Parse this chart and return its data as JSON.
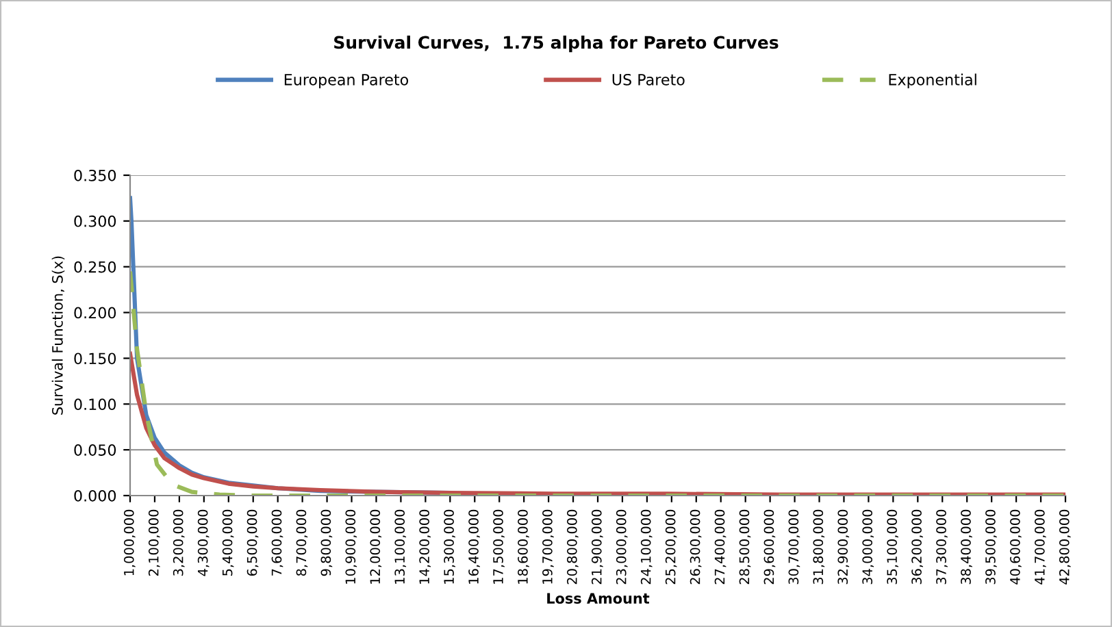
{
  "chart_data": {
    "type": "line",
    "title": "Survival Curves,  1.75 alpha for Pareto Curves",
    "xlabel": "Loss Amount",
    "ylabel": "Survival Function, S(x)",
    "xlim": [
      1000000,
      42800000
    ],
    "xticks": [
      {
        "value": 1000000,
        "label": "1,000,000"
      },
      {
        "value": 2100000,
        "label": "2,100,000"
      },
      {
        "value": 3200000,
        "label": "3,200,000"
      },
      {
        "value": 4300000,
        "label": "4,300,000"
      },
      {
        "value": 5400000,
        "label": "5,400,000"
      },
      {
        "value": 6500000,
        "label": "6,500,000"
      },
      {
        "value": 7600000,
        "label": "7,600,000"
      },
      {
        "value": 8700000,
        "label": "8,700,000"
      },
      {
        "value": 9800000,
        "label": "9,800,000"
      },
      {
        "value": 10900000,
        "label": "10,900,000"
      },
      {
        "value": 12000000,
        "label": "12,000,000"
      },
      {
        "value": 13100000,
        "label": "13,100,000"
      },
      {
        "value": 14200000,
        "label": "14,200,000"
      },
      {
        "value": 15300000,
        "label": "15,300,000"
      },
      {
        "value": 16400000,
        "label": "16,400,000"
      },
      {
        "value": 17500000,
        "label": "17,500,000"
      },
      {
        "value": 18600000,
        "label": "18,600,000"
      },
      {
        "value": 19700000,
        "label": "19,700,000"
      },
      {
        "value": 20800000,
        "label": "20,800,000"
      },
      {
        "value": 21900000,
        "label": "21,900,000"
      },
      {
        "value": 23000000,
        "label": "23,000,000"
      },
      {
        "value": 24100000,
        "label": "24,100,000"
      },
      {
        "value": 25200000,
        "label": "25,200,000"
      },
      {
        "value": 26300000,
        "label": "26,300,000"
      },
      {
        "value": 27400000,
        "label": "27,400,000"
      },
      {
        "value": 28500000,
        "label": "28,500,000"
      },
      {
        "value": 29600000,
        "label": "29,600,000"
      },
      {
        "value": 30700000,
        "label": "30,700,000"
      },
      {
        "value": 31800000,
        "label": "31,800,000"
      },
      {
        "value": 32900000,
        "label": "32,900,000"
      },
      {
        "value": 34000000,
        "label": "34,000,000"
      },
      {
        "value": 35100000,
        "label": "35,100,000"
      },
      {
        "value": 36200000,
        "label": "36,200,000"
      },
      {
        "value": 37300000,
        "label": "37,300,000"
      },
      {
        "value": 38400000,
        "label": "38,400,000"
      },
      {
        "value": 39500000,
        "label": "39,500,000"
      },
      {
        "value": 40600000,
        "label": "40,600,000"
      },
      {
        "value": 41700000,
        "label": "41,700,000"
      },
      {
        "value": 42800000,
        "label": "42,800,000"
      }
    ],
    "ylim": [
      0,
      0.35
    ],
    "yticks": [
      {
        "value": 0,
        "label": "0.000"
      },
      {
        "value": 0.05,
        "label": "0.050"
      },
      {
        "value": 0.1,
        "label": "0.100"
      },
      {
        "value": 0.15,
        "label": "0.150"
      },
      {
        "value": 0.2,
        "label": "0.200"
      },
      {
        "value": 0.25,
        "label": "0.250"
      },
      {
        "value": 0.3,
        "label": "0.300"
      },
      {
        "value": 0.35,
        "label": "0.350"
      }
    ],
    "grid": "y",
    "legend": "top",
    "marker": "none",
    "series": [
      {
        "name": "European Pareto",
        "color": "#4f81bd",
        "line_style": "solid",
        "x": [
          1000000,
          1060000,
          1310000,
          1720000,
          2100000,
          2530000,
          3200000,
          3760000,
          4300000,
          5400000,
          6500000,
          7600000,
          9500000,
          12000000,
          15300000
        ],
        "values": [
          0.325,
          0.3,
          0.15,
          0.088,
          0.063,
          0.047,
          0.033,
          0.025,
          0.02,
          0.014,
          0.011,
          0.008,
          0.005,
          0.004,
          0.003
        ]
      },
      {
        "name": "US Pareto",
        "color": "#c0504d",
        "line_style": "solid",
        "x": [
          1000000,
          1310000,
          1720000,
          2100000,
          2530000,
          3200000,
          3760000,
          4300000,
          5400000,
          6500000,
          7600000,
          9500000,
          12000000,
          15300000,
          20000000,
          25000000,
          30000000,
          36000000,
          42800000
        ],
        "values": [
          0.155,
          0.11,
          0.074,
          0.055,
          0.041,
          0.03,
          0.023,
          0.019,
          0.013,
          0.01,
          0.008,
          0.006,
          0.004,
          0.003,
          0.002,
          0.002,
          0.001,
          0.001,
          0.001
        ]
      },
      {
        "name": "Exponential",
        "color": "#9bbb59",
        "line_style": "dashed",
        "x": [
          1000000,
          1310000,
          1720000,
          2200000,
          2900000,
          3760000,
          5000000,
          6500000,
          42800000
        ],
        "values": [
          0.245,
          0.16,
          0.09,
          0.034,
          0.012,
          0.004,
          0.001,
          0.0,
          0.0
        ]
      }
    ]
  }
}
